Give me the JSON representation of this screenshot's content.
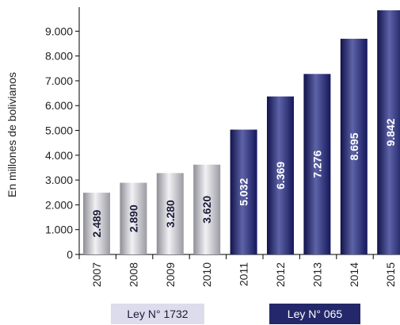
{
  "chart_data": {
    "type": "bar",
    "categories": [
      "2007",
      "2008",
      "2009",
      "2010",
      "2011",
      "2012",
      "2013",
      "2014",
      "2015"
    ],
    "values": [
      2489,
      2890,
      3280,
      3620,
      5032,
      6369,
      7276,
      8695,
      9842
    ],
    "value_labels": [
      "2.489",
      "2.890",
      "3.280",
      "3.620",
      "5.032",
      "6.369",
      "7.276",
      "8.695",
      "9.842"
    ],
    "series_group": [
      "silver",
      "silver",
      "silver",
      "silver",
      "navy",
      "navy",
      "navy",
      "navy",
      "navy"
    ],
    "ylabel": "En millones de bolivianos",
    "xlabel": "",
    "title": "",
    "ylim": [
      0,
      9842
    ],
    "y_ticks": [
      0,
      1000,
      2000,
      3000,
      4000,
      5000,
      6000,
      7000,
      8000,
      9000
    ],
    "y_tick_labels": [
      "0",
      "1.000",
      "2.000",
      "3.000",
      "4.000",
      "5.000",
      "6.000",
      "7.000",
      "8.000",
      "9.000"
    ],
    "grid": false,
    "colors": {
      "silver": "#c8c8cc",
      "navy": "#24286a",
      "label_dark": "#1b1b3a",
      "label_light": "#ffffff"
    }
  },
  "legend": [
    {
      "text": "Ley N°  1732",
      "group": "silver"
    },
    {
      "text": "Ley N°  065",
      "group": "navy"
    }
  ]
}
